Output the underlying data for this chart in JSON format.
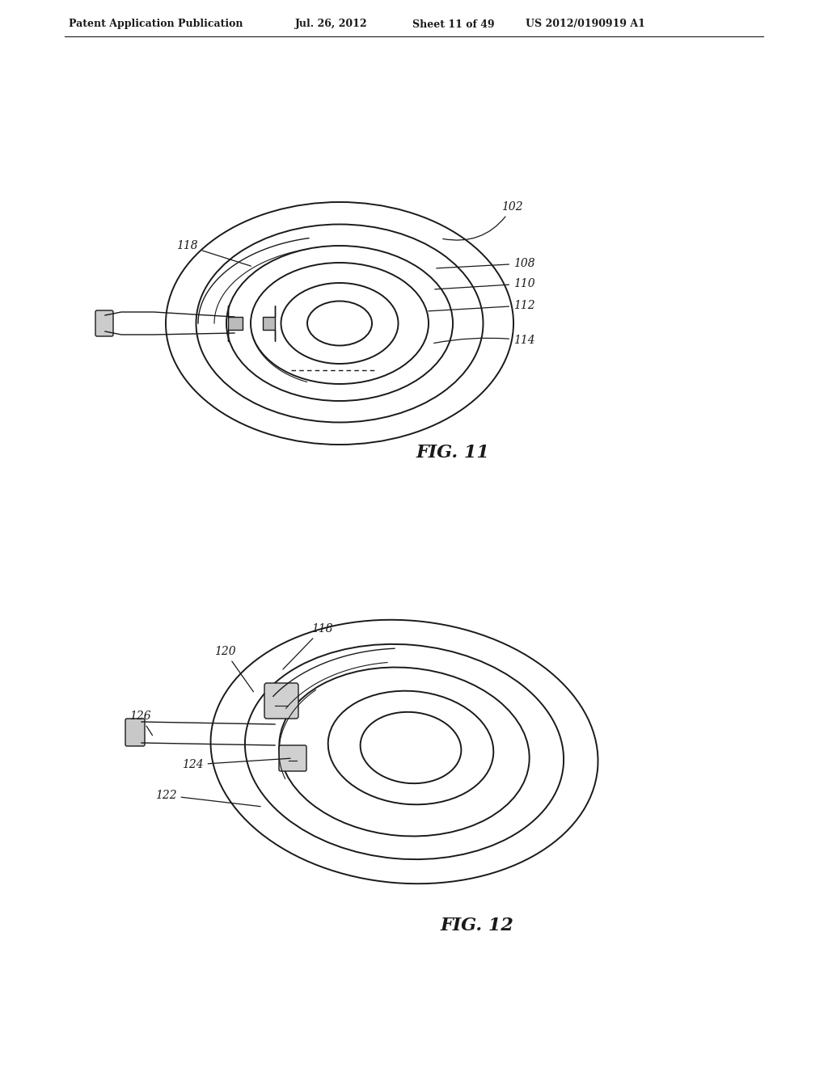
{
  "background_color": "#ffffff",
  "header_text": "Patent Application Publication",
  "header_date": "Jul. 26, 2012",
  "header_sheet": "Sheet 11 of 49",
  "header_patent": "US 2012/0190919 A1",
  "fig1_label": "FIG. 11",
  "fig2_label": "FIG. 12",
  "line_color": "#1a1a1a",
  "label_fontsize": 10,
  "caption_fontsize": 16,
  "header_fontsize": 9
}
